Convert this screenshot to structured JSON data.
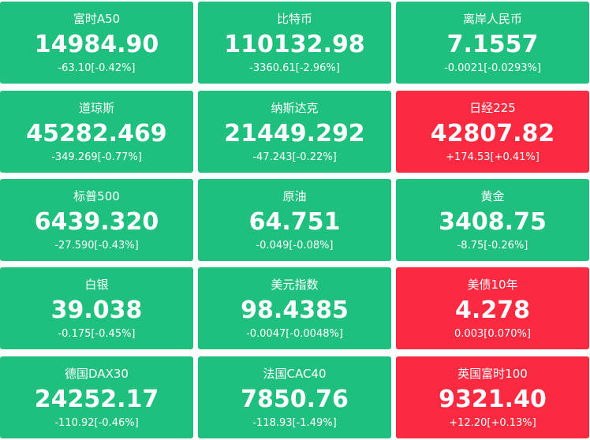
{
  "tiles": [
    {
      "name": "富时A50",
      "price": "14984.90",
      "change": "-63.10[-0.42%]",
      "color": "#1fbf7d"
    },
    {
      "name": "比特币",
      "price": "110132.98",
      "change": "-3360.61[-2.96%]",
      "color": "#1fbf7d"
    },
    {
      "name": "离岸人民币",
      "price": "7.1557",
      "change": "-0.0021[-0.0293%]",
      "color": "#1fbf7d"
    },
    {
      "name": "道琼斯",
      "price": "45282.469",
      "change": "-349.269[-0.77%]",
      "color": "#1fbf7d"
    },
    {
      "name": "纳斯达克",
      "price": "21449.292",
      "change": "-47.243[-0.22%]",
      "color": "#1fbf7d"
    },
    {
      "name": "日经225",
      "price": "42807.82",
      "change": "+174.53[+0.41%]",
      "color": "#fb2a40"
    },
    {
      "name": "标普500",
      "price": "6439.320",
      "change": "-27.590[-0.43%]",
      "color": "#1fbf7d"
    },
    {
      "name": "原油",
      "price": "64.751",
      "change": "-0.049[-0.08%]",
      "color": "#1fbf7d"
    },
    {
      "name": "黄金",
      "price": "3408.75",
      "change": "-8.75[-0.26%]",
      "color": "#1fbf7d"
    },
    {
      "name": "白银",
      "price": "39.038",
      "change": "-0.175[-0.45%]",
      "color": "#1fbf7d"
    },
    {
      "name": "美元指数",
      "price": "98.4385",
      "change": "-0.0047[-0.0048%]",
      "color": "#1fbf7d"
    },
    {
      "name": "美债10年",
      "price": "4.278",
      "change": "0.003[0.070%]",
      "color": "#fb2a40"
    },
    {
      "name": "德国DAX30",
      "price": "24252.17",
      "change": "-110.92[-0.46%]",
      "color": "#1fbf7d"
    },
    {
      "name": "法国CAC40",
      "price": "7850.76",
      "change": "-118.93[-1.49%]",
      "color": "#1fbf7d"
    },
    {
      "name": "英国富时100",
      "price": "9321.40",
      "change": "+12.20[+0.13%]",
      "color": "#fb2a40"
    }
  ]
}
